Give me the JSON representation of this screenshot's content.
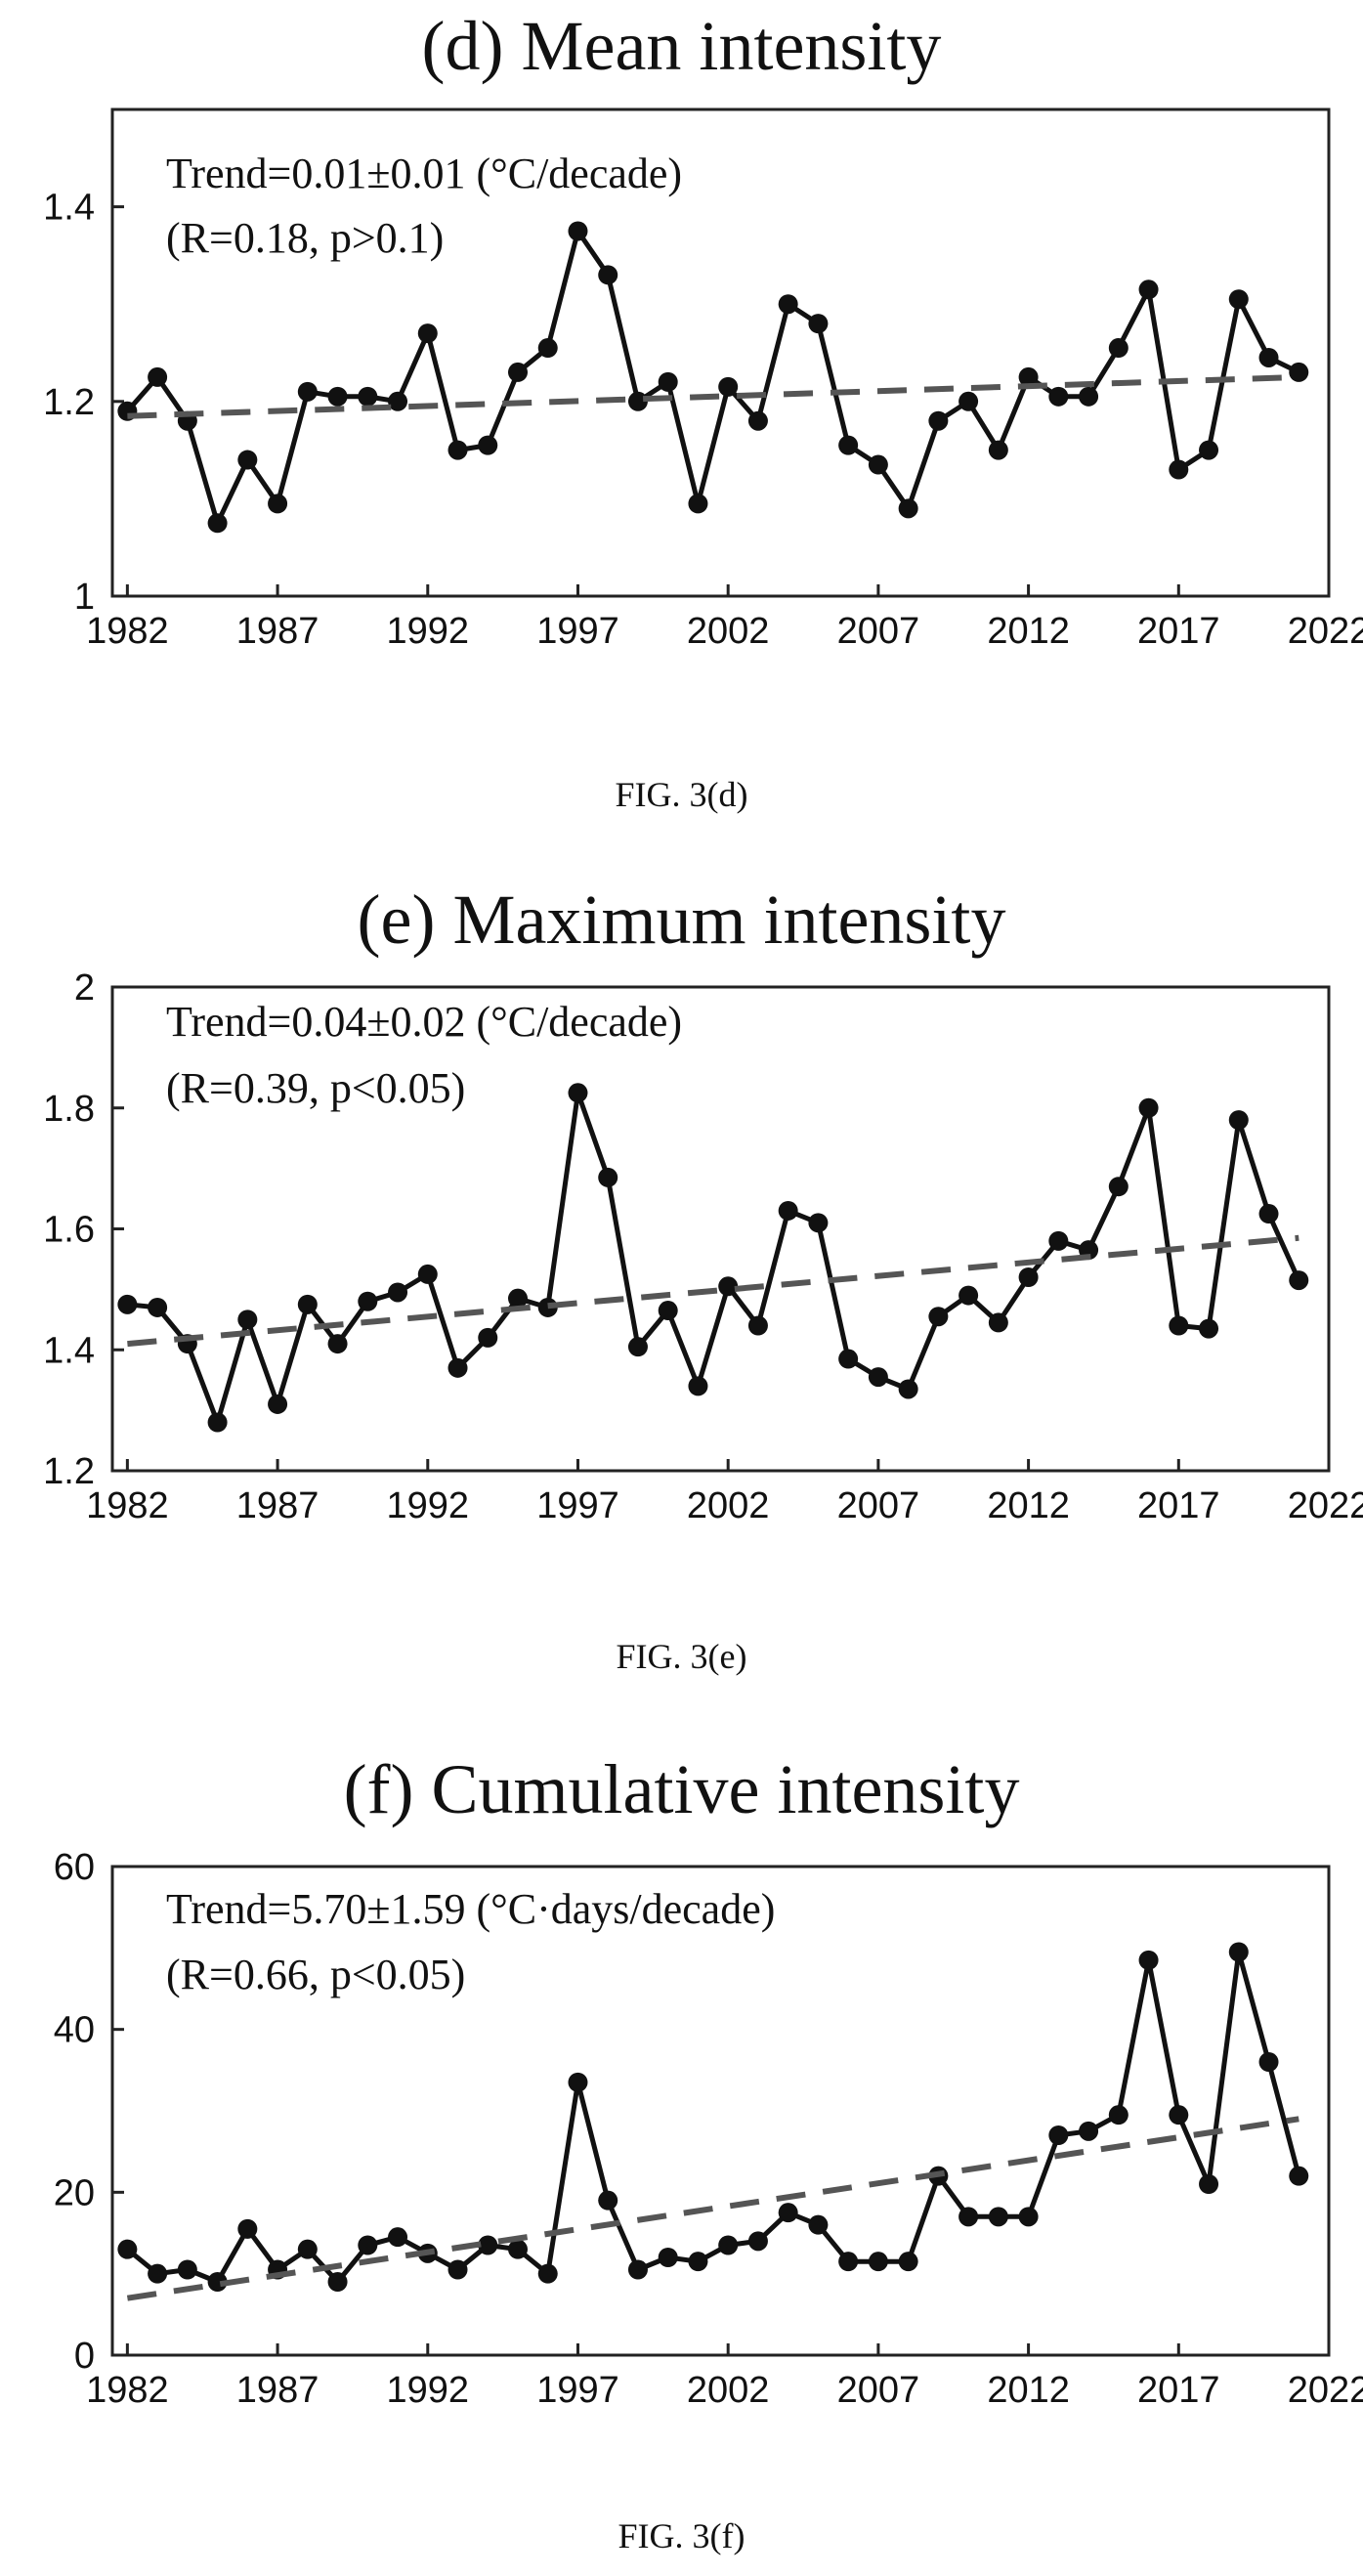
{
  "figures": [
    {
      "title": "(d) Mean intensity",
      "caption": "FIG. 3(d)"
    },
    {
      "title": "(e) Maximum intensity",
      "caption": "FIG. 3(e)"
    },
    {
      "title": "(f) Cumulative intensity",
      "caption": "FIG. 3(f)"
    }
  ],
  "chart_data": [
    {
      "type": "line",
      "title": "(d) Mean intensity",
      "xlabel": "",
      "ylabel": "",
      "xlim": [
        1981.5,
        2022
      ],
      "ylim": [
        1,
        1.5
      ],
      "xticks": [
        1982,
        1987,
        1992,
        1997,
        2002,
        2007,
        2012,
        2017,
        2022
      ],
      "xtick_labels": [
        "1982",
        "1987",
        "1992",
        "1997",
        "2002",
        "2007",
        "2012",
        "2017",
        "2022"
      ],
      "yticks": [
        1,
        1.2,
        1.4
      ],
      "ytick_labels": [
        "1",
        "1.2",
        "1.4"
      ],
      "annotations": [
        "Trend=0.01±0.01 (°C/decade)",
        "(R=0.18, p>0.1)"
      ],
      "series": [
        {
          "style": "solid-markers",
          "x": [
            1982,
            1983,
            1984,
            1985,
            1986,
            1987,
            1988,
            1989,
            1990,
            1991,
            1992,
            1993,
            1994,
            1995,
            1996,
            1997,
            1998,
            1999,
            2000,
            2001,
            2002,
            2003,
            2004,
            2005,
            2006,
            2007,
            2008,
            2009,
            2010,
            2011,
            2012,
            2013,
            2014,
            2015,
            2016,
            2017,
            2018,
            2019,
            2020,
            2021
          ],
          "values": [
            1.19,
            1.225,
            1.18,
            1.075,
            1.14,
            1.095,
            1.21,
            1.205,
            1.205,
            1.2,
            1.27,
            1.15,
            1.155,
            1.23,
            1.255,
            1.375,
            1.33,
            1.2,
            1.22,
            1.095,
            1.215,
            1.18,
            1.3,
            1.28,
            1.155,
            1.135,
            1.09,
            1.18,
            1.2,
            1.15,
            1.225,
            1.205,
            1.205,
            1.255,
            1.315,
            1.13,
            1.15,
            1.305,
            1.245,
            1.23
          ]
        },
        {
          "style": "dashed",
          "x": [
            1982,
            2021
          ],
          "values": [
            1.185,
            1.225
          ]
        }
      ]
    },
    {
      "type": "line",
      "title": "(e) Maximum intensity",
      "xlabel": "",
      "ylabel": "",
      "xlim": [
        1981.5,
        2022
      ],
      "ylim": [
        1.2,
        2
      ],
      "xticks": [
        1982,
        1987,
        1992,
        1997,
        2002,
        2007,
        2012,
        2017,
        2022
      ],
      "xtick_labels": [
        "1982",
        "1987",
        "1992",
        "1997",
        "2002",
        "2007",
        "2012",
        "2017",
        "2022"
      ],
      "yticks": [
        1.2,
        1.4,
        1.6,
        1.8,
        2
      ],
      "ytick_labels": [
        "1.2",
        "1.4",
        "1.6",
        "1.8",
        "2"
      ],
      "annotations": [
        "Trend=0.04±0.02 (°C/decade)",
        "(R=0.39, p<0.05)"
      ],
      "series": [
        {
          "style": "solid-markers",
          "x": [
            1982,
            1983,
            1984,
            1985,
            1986,
            1987,
            1988,
            1989,
            1990,
            1991,
            1992,
            1993,
            1994,
            1995,
            1996,
            1997,
            1998,
            1999,
            2000,
            2001,
            2002,
            2003,
            2004,
            2005,
            2006,
            2007,
            2008,
            2009,
            2010,
            2011,
            2012,
            2013,
            2014,
            2015,
            2016,
            2017,
            2018,
            2019,
            2020,
            2021
          ],
          "values": [
            1.475,
            1.47,
            1.41,
            1.28,
            1.45,
            1.31,
            1.475,
            1.41,
            1.48,
            1.495,
            1.525,
            1.37,
            1.42,
            1.485,
            1.47,
            1.825,
            1.685,
            1.405,
            1.465,
            1.34,
            1.505,
            1.44,
            1.63,
            1.61,
            1.385,
            1.355,
            1.335,
            1.455,
            1.49,
            1.445,
            1.52,
            1.58,
            1.565,
            1.67,
            1.8,
            1.44,
            1.435,
            1.78,
            1.625,
            1.515
          ]
        },
        {
          "style": "dashed",
          "x": [
            1982,
            2021
          ],
          "values": [
            1.41,
            1.585
          ]
        }
      ]
    },
    {
      "type": "line",
      "title": "(f) Cumulative intensity",
      "xlabel": "",
      "ylabel": "",
      "xlim": [
        1981.5,
        2022
      ],
      "ylim": [
        0,
        60
      ],
      "xticks": [
        1982,
        1987,
        1992,
        1997,
        2002,
        2007,
        2012,
        2017,
        2022
      ],
      "xtick_labels": [
        "1982",
        "1987",
        "1992",
        "1997",
        "2002",
        "2007",
        "2012",
        "2017",
        "2022"
      ],
      "yticks": [
        0,
        20,
        40,
        60
      ],
      "ytick_labels": [
        "0",
        "20",
        "40",
        "60"
      ],
      "annotations": [
        "Trend=5.70±1.59 (°C·days/decade)",
        "(R=0.66, p<0.05)"
      ],
      "series": [
        {
          "style": "solid-markers",
          "x": [
            1982,
            1983,
            1984,
            1985,
            1986,
            1987,
            1988,
            1989,
            1990,
            1991,
            1992,
            1993,
            1994,
            1995,
            1996,
            1997,
            1998,
            1999,
            2000,
            2001,
            2002,
            2003,
            2004,
            2005,
            2006,
            2007,
            2008,
            2009,
            2010,
            2011,
            2012,
            2013,
            2014,
            2015,
            2016,
            2017,
            2018,
            2019,
            2020,
            2021
          ],
          "values": [
            13,
            10,
            10.5,
            9,
            15.5,
            10.5,
            13,
            9,
            13.5,
            14.5,
            12.5,
            10.5,
            13.5,
            13,
            10,
            33.5,
            19,
            10.5,
            12,
            11.5,
            13.5,
            14,
            17.5,
            16,
            11.5,
            11.5,
            11.5,
            22,
            17,
            17,
            17,
            27,
            27.5,
            29.5,
            48.5,
            29.5,
            21,
            49.5,
            36,
            22
          ]
        },
        {
          "style": "dashed",
          "x": [
            1982,
            2021
          ],
          "values": [
            7,
            29
          ]
        }
      ]
    }
  ]
}
